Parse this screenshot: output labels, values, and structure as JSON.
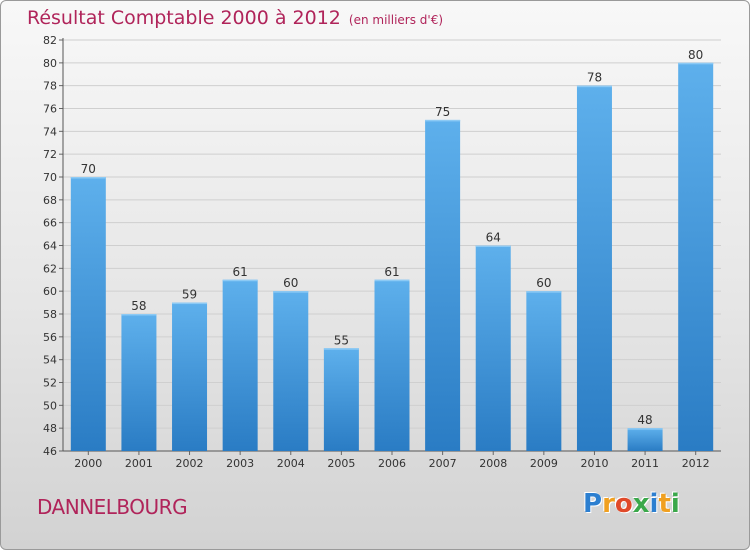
{
  "chart_data": {
    "type": "bar",
    "title": "Résultat Comptable 2000 à 2012",
    "unit_label": "(en milliers d'€)",
    "categories": [
      "2000",
      "2001",
      "2002",
      "2003",
      "2004",
      "2005",
      "2006",
      "2007",
      "2008",
      "2009",
      "2010",
      "2011",
      "2012"
    ],
    "values": [
      70,
      58,
      59,
      61,
      60,
      55,
      61,
      75,
      64,
      60,
      78,
      48,
      80
    ],
    "ylim": [
      46,
      82
    ],
    "yticks": [
      46,
      48,
      50,
      52,
      54,
      56,
      58,
      60,
      62,
      64,
      66,
      68,
      70,
      72,
      74,
      76,
      78,
      80,
      82
    ],
    "xlabel": "",
    "ylabel": "",
    "grid": true,
    "bar_color": "#4a9be0"
  },
  "place_name": "DANNELBOURG",
  "brand": {
    "letters": [
      "P",
      "r",
      "o",
      "x",
      "i",
      "t",
      "i"
    ],
    "colors": [
      "#2c7fd0",
      "#f0a020",
      "#e04a2a",
      "#3aa84a",
      "#2c7fd0",
      "#f0a020",
      "#3aa84a"
    ]
  }
}
